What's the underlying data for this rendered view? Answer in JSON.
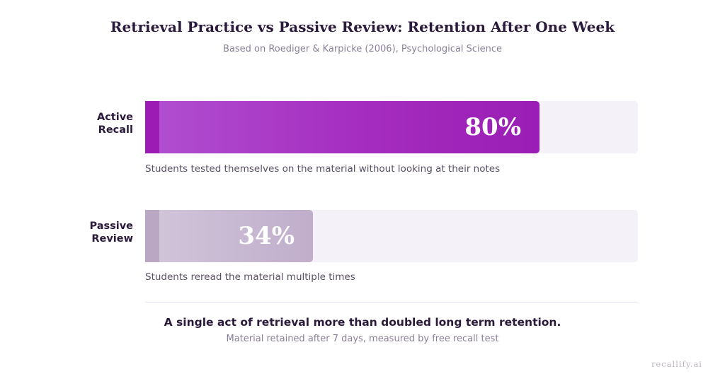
{
  "chart_data": {
    "type": "bar",
    "orientation": "horizontal",
    "title": "Retrieval Practice vs Passive Review: Retention After One Week",
    "subtitle": "Based on Roediger & Karpicke (2006), Psychological Science",
    "xlim": [
      0,
      100
    ],
    "categories": [
      {
        "label_lines": [
          "Active",
          "Recall"
        ],
        "value": 80,
        "value_label": "80%",
        "description": "Students tested themselves on the material without looking at their notes"
      },
      {
        "label_lines": [
          "Passive",
          "Review"
        ],
        "value": 34,
        "value_label": "34%",
        "description": "Students reread the material multiple times"
      }
    ],
    "colors": {
      "active_recall": "#a52dbf",
      "passive_review": "#c0aecb",
      "track": "#f5f1f8"
    },
    "takeaway": "A single act of retrieval more than doubled long term retention.",
    "footnote": "Material retained after 7 days, measured by free recall test"
  },
  "watermark": "recallify.ai"
}
